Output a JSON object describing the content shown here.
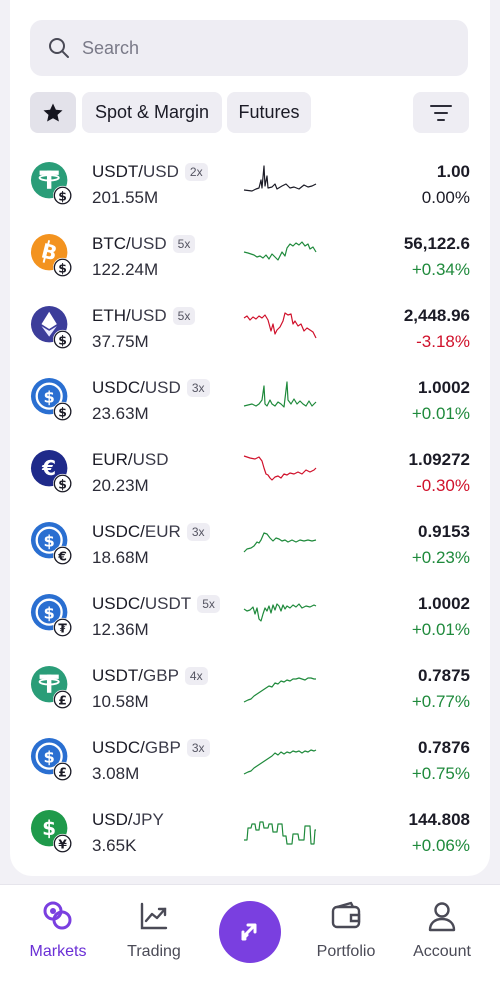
{
  "search": {
    "placeholder": "Search"
  },
  "filters": {
    "favorites_icon": "star-icon",
    "spot_label": "Spot & Margin",
    "futures_label": "Futures",
    "sort_icon": "sort-filter-icon"
  },
  "colors": {
    "accent": "#7a3fe0",
    "positive": "#1f8a3c",
    "negative": "#d0112b",
    "neutral": "#1b1b26"
  },
  "markets": [
    {
      "base": "USDT",
      "quote": "USD",
      "leverage": "2x",
      "volume": "201.55M",
      "price": "1.00",
      "change": "0.00%",
      "trend": "neutral",
      "coin": "usdt",
      "quote_icon": "$"
    },
    {
      "base": "BTC",
      "quote": "USD",
      "leverage": "5x",
      "volume": "122.24M",
      "price": "56,122.6",
      "change": "+0.34%",
      "trend": "up",
      "coin": "btc",
      "quote_icon": "$"
    },
    {
      "base": "ETH",
      "quote": "USD",
      "leverage": "5x",
      "volume": "37.75M",
      "price": "2,448.96",
      "change": "-3.18%",
      "trend": "down",
      "coin": "eth",
      "quote_icon": "$"
    },
    {
      "base": "USDC",
      "quote": "USD",
      "leverage": "3x",
      "volume": "23.63M",
      "price": "1.0002",
      "change": "+0.01%",
      "trend": "up",
      "coin": "usdc",
      "quote_icon": "$"
    },
    {
      "base": "EUR",
      "quote": "USD",
      "leverage": "",
      "volume": "20.23M",
      "price": "1.09272",
      "change": "-0.30%",
      "trend": "down",
      "coin": "eur",
      "quote_icon": "$"
    },
    {
      "base": "USDC",
      "quote": "EUR",
      "leverage": "3x",
      "volume": "18.68M",
      "price": "0.9153",
      "change": "+0.23%",
      "trend": "up",
      "coin": "usdc",
      "quote_icon": "€"
    },
    {
      "base": "USDC",
      "quote": "USDT",
      "leverage": "5x",
      "volume": "12.36M",
      "price": "1.0002",
      "change": "+0.01%",
      "trend": "up",
      "coin": "usdc",
      "quote_icon": "₮"
    },
    {
      "base": "USDT",
      "quote": "GBP",
      "leverage": "4x",
      "volume": "10.58M",
      "price": "0.7875",
      "change": "+0.77%",
      "trend": "up",
      "coin": "usdt",
      "quote_icon": "£"
    },
    {
      "base": "USDC",
      "quote": "GBP",
      "leverage": "3x",
      "volume": "3.08M",
      "price": "0.7876",
      "change": "+0.75%",
      "trend": "up",
      "coin": "usdc",
      "quote_icon": "£"
    },
    {
      "base": "USD",
      "quote": "JPY",
      "leverage": "",
      "volume": "3.65K",
      "price": "144.808",
      "change": "+0.06%",
      "trend": "up",
      "coin": "usd",
      "quote_icon": "¥"
    }
  ],
  "bottom_nav": [
    {
      "label": "Markets",
      "icon": "markets-icon",
      "active": true
    },
    {
      "label": "Trading",
      "icon": "trading-chart-icon",
      "active": false
    },
    {
      "label": "",
      "icon": "trade-swap-icon",
      "active": false
    },
    {
      "label": "Portfolio",
      "icon": "wallet-icon",
      "active": false
    },
    {
      "label": "Account",
      "icon": "user-icon",
      "active": false
    }
  ]
}
